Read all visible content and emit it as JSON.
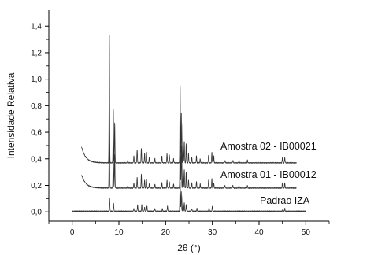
{
  "chart_data": {
    "type": "line",
    "xlabel": "2θ (°)",
    "ylabel": "Intensidade Relativa",
    "xlim": [
      -5,
      55
    ],
    "ylim": [
      -0.07,
      1.52
    ],
    "xticks": [
      0,
      10,
      20,
      30,
      40,
      50
    ],
    "xtick_labels": [
      "0",
      "10",
      "20",
      "30",
      "40",
      "50"
    ],
    "yticks": [
      0.0,
      0.2,
      0.4,
      0.6,
      0.8,
      1.0,
      1.2,
      1.4
    ],
    "ytick_labels": [
      "0,0",
      "0,2",
      "0,4",
      "0,6",
      "0,8",
      "1,0",
      "1,2",
      "1,4"
    ],
    "grid": false,
    "line_color": "#333333",
    "series": [
      {
        "name": "Padrao IZA",
        "x_range": [
          0,
          50
        ],
        "baseline": 0.005,
        "low_angle_rise": 0.0,
        "peaks": [
          [
            8.0,
            0.1
          ],
          [
            8.85,
            0.06
          ],
          [
            13.2,
            0.02
          ],
          [
            14.0,
            0.05
          ],
          [
            14.9,
            0.05
          ],
          [
            15.5,
            0.03
          ],
          [
            16.0,
            0.04
          ],
          [
            17.7,
            0.02
          ],
          [
            19.3,
            0.02
          ],
          [
            20.4,
            0.04
          ],
          [
            23.1,
            0.24
          ],
          [
            23.35,
            0.15
          ],
          [
            23.7,
            0.12
          ],
          [
            24.0,
            0.06
          ],
          [
            24.4,
            0.05
          ],
          [
            25.6,
            0.02
          ],
          [
            26.7,
            0.02
          ],
          [
            29.3,
            0.03
          ],
          [
            30.0,
            0.04
          ],
          [
            45.1,
            0.02
          ],
          [
            45.5,
            0.02
          ]
        ]
      },
      {
        "name": "Amostra 01 - IB00012",
        "x_range": [
          2,
          48
        ],
        "baseline": 0.18,
        "low_angle_rise": 0.1,
        "peaks": [
          [
            7.95,
            0.52
          ],
          [
            8.8,
            0.36
          ],
          [
            9.1,
            0.25
          ],
          [
            11.9,
            0.015
          ],
          [
            13.2,
            0.04
          ],
          [
            13.9,
            0.08
          ],
          [
            14.8,
            0.1
          ],
          [
            15.5,
            0.06
          ],
          [
            15.9,
            0.07
          ],
          [
            16.5,
            0.03
          ],
          [
            17.7,
            0.03
          ],
          [
            19.2,
            0.04
          ],
          [
            20.3,
            0.06
          ],
          [
            20.8,
            0.05
          ],
          [
            21.7,
            0.03
          ],
          [
            23.1,
            0.46
          ],
          [
            23.35,
            0.32
          ],
          [
            23.7,
            0.26
          ],
          [
            24.0,
            0.14
          ],
          [
            24.4,
            0.12
          ],
          [
            24.9,
            0.06
          ],
          [
            25.6,
            0.04
          ],
          [
            26.6,
            0.05
          ],
          [
            27.4,
            0.03
          ],
          [
            29.2,
            0.06
          ],
          [
            29.9,
            0.07
          ],
          [
            30.3,
            0.04
          ],
          [
            32.7,
            0.02
          ],
          [
            34.4,
            0.02
          ],
          [
            35.7,
            0.02
          ],
          [
            37.5,
            0.02
          ],
          [
            45.0,
            0.04
          ],
          [
            45.5,
            0.04
          ]
        ]
      },
      {
        "name": "Amostra 02 - IB00021",
        "x_range": [
          2,
          48
        ],
        "baseline": 0.37,
        "low_angle_rise": 0.12,
        "peaks": [
          [
            7.95,
            0.98
          ],
          [
            8.8,
            0.4
          ],
          [
            9.1,
            0.3
          ],
          [
            11.9,
            0.02
          ],
          [
            13.2,
            0.05
          ],
          [
            13.9,
            0.1
          ],
          [
            14.8,
            0.11
          ],
          [
            15.5,
            0.07
          ],
          [
            15.9,
            0.08
          ],
          [
            16.5,
            0.04
          ],
          [
            17.7,
            0.03
          ],
          [
            19.2,
            0.05
          ],
          [
            20.3,
            0.07
          ],
          [
            20.8,
            0.06
          ],
          [
            21.7,
            0.03
          ],
          [
            23.1,
            0.58
          ],
          [
            23.35,
            0.38
          ],
          [
            23.7,
            0.3
          ],
          [
            24.0,
            0.16
          ],
          [
            24.4,
            0.14
          ],
          [
            24.9,
            0.07
          ],
          [
            25.6,
            0.04
          ],
          [
            26.6,
            0.05
          ],
          [
            27.4,
            0.03
          ],
          [
            29.2,
            0.06
          ],
          [
            29.9,
            0.08
          ],
          [
            30.3,
            0.05
          ],
          [
            32.7,
            0.02
          ],
          [
            34.4,
            0.02
          ],
          [
            35.7,
            0.02
          ],
          [
            37.5,
            0.02
          ],
          [
            45.0,
            0.04
          ],
          [
            45.5,
            0.04
          ]
        ]
      }
    ],
    "annotations": [
      {
        "text": "Amostra 02 - IB00021",
        "series": "Amostra 02 - IB00021",
        "x": 42.0,
        "y": 0.47
      },
      {
        "text": "Amostra 01 - IB00012",
        "series": "Amostra 01 - IB00012",
        "x": 42.0,
        "y": 0.255
      },
      {
        "text": "Padrao IZA",
        "series": "Padrao IZA",
        "x": 45.5,
        "y": 0.06
      }
    ]
  }
}
